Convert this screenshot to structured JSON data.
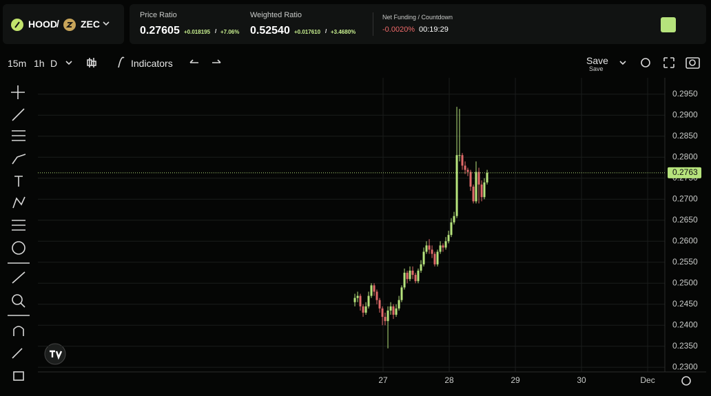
{
  "header": {
    "base": "HOOD",
    "separator": "/",
    "quote": "ZEC",
    "price_ratio": {
      "label": "Price Ratio",
      "value": "0.27605",
      "change": "+0.018195",
      "separator": "/",
      "change_pct": "+7.06%"
    },
    "weighted_ratio": {
      "label": "Weighted Ratio",
      "value": "0.52540",
      "change": "+0.017610",
      "separator": "/",
      "change_pct": "+3.4680%"
    },
    "net_funding": {
      "label": "Net Funding / Countdown",
      "value": "-0.0020%",
      "countdown": "00:19:29"
    }
  },
  "toolbar": {
    "intervals": [
      "15m",
      "1h",
      "D"
    ],
    "indicators": "Indicators",
    "save": "Save",
    "save_sub": "Save"
  },
  "chart_data": {
    "type": "candlestick",
    "up_color": "#b6e37c",
    "down_color": "#e06a6a",
    "grid": true,
    "x": [
      26.573,
      26.615,
      26.656,
      26.698,
      26.74,
      26.781,
      26.823,
      26.865,
      26.906,
      26.948,
      26.99,
      27.031,
      27.073,
      27.115,
      27.156,
      27.198,
      27.24,
      27.281,
      27.323,
      27.365,
      27.406,
      27.448,
      27.49,
      27.531,
      27.573,
      27.615,
      27.656,
      27.698,
      27.74,
      27.781,
      27.823,
      27.865,
      27.906,
      27.948,
      27.99,
      28.031,
      28.073,
      28.115,
      28.156,
      28.198,
      28.24,
      28.281,
      28.323,
      28.365,
      28.406,
      28.448,
      28.49,
      28.531,
      28.573
    ],
    "open": [
      0.2455,
      0.2465,
      0.247,
      0.2445,
      0.243,
      0.2445,
      0.247,
      0.2495,
      0.248,
      0.246,
      0.244,
      0.242,
      0.241,
      0.2435,
      0.2445,
      0.2425,
      0.244,
      0.246,
      0.249,
      0.2525,
      0.251,
      0.253,
      0.252,
      0.2505,
      0.253,
      0.2545,
      0.2575,
      0.259,
      0.258,
      0.257,
      0.2545,
      0.2575,
      0.259,
      0.2585,
      0.26,
      0.2615,
      0.2645,
      0.266,
      0.2805,
      0.2805,
      0.278,
      0.277,
      0.2765,
      0.273,
      0.2695,
      0.2765,
      0.2735,
      0.2705,
      0.274
    ],
    "high": [
      0.2475,
      0.248,
      0.2475,
      0.245,
      0.2455,
      0.248,
      0.25,
      0.25,
      0.2485,
      0.2465,
      0.2445,
      0.243,
      0.2445,
      0.2455,
      0.245,
      0.245,
      0.247,
      0.2495,
      0.2535,
      0.253,
      0.254,
      0.254,
      0.2525,
      0.2535,
      0.2555,
      0.2585,
      0.26,
      0.2605,
      0.259,
      0.2575,
      0.258,
      0.26,
      0.2595,
      0.261,
      0.2625,
      0.2655,
      0.267,
      0.292,
      0.2915,
      0.281,
      0.279,
      0.2775,
      0.277,
      0.2735,
      0.279,
      0.2775,
      0.2745,
      0.275,
      0.277
    ],
    "low": [
      0.2445,
      0.2455,
      0.2435,
      0.242,
      0.2425,
      0.244,
      0.2465,
      0.247,
      0.245,
      0.243,
      0.24,
      0.24,
      0.2345,
      0.2425,
      0.2415,
      0.242,
      0.2435,
      0.2455,
      0.2485,
      0.25,
      0.2505,
      0.251,
      0.25,
      0.25,
      0.2525,
      0.254,
      0.257,
      0.257,
      0.256,
      0.254,
      0.254,
      0.257,
      0.2575,
      0.258,
      0.2595,
      0.261,
      0.264,
      0.2655,
      0.279,
      0.277,
      0.276,
      0.2755,
      0.272,
      0.269,
      0.269,
      0.269,
      0.2695,
      0.27,
      0.2735
    ],
    "close": [
      0.2465,
      0.247,
      0.2445,
      0.243,
      0.2445,
      0.247,
      0.2495,
      0.248,
      0.246,
      0.244,
      0.242,
      0.241,
      0.2435,
      0.2445,
      0.2425,
      0.244,
      0.246,
      0.249,
      0.2525,
      0.251,
      0.253,
      0.252,
      0.2505,
      0.253,
      0.2545,
      0.2575,
      0.259,
      0.258,
      0.257,
      0.2545,
      0.2575,
      0.259,
      0.2585,
      0.26,
      0.2615,
      0.2645,
      0.266,
      0.2805,
      0.2805,
      0.278,
      0.277,
      0.2765,
      0.273,
      0.2695,
      0.2765,
      0.2735,
      0.2705,
      0.274,
      0.2763
    ],
    "last_price": {
      "value": 0.2763,
      "label": "0.2763"
    },
    "xlim": [
      21.781,
      31.26
    ],
    "xticks": [
      {
        "value": 27,
        "label": "27"
      },
      {
        "value": 28,
        "label": "28"
      },
      {
        "value": 29,
        "label": "29"
      },
      {
        "value": 30,
        "label": "30"
      },
      {
        "value": 31,
        "label": "Dec"
      }
    ],
    "ylim": [
      0.2289,
      0.2989
    ],
    "yticks": [
      {
        "value": 0.23,
        "label": "0.2300"
      },
      {
        "value": 0.235,
        "label": "0.2350"
      },
      {
        "value": 0.24,
        "label": "0.2400"
      },
      {
        "value": 0.245,
        "label": "0.2450"
      },
      {
        "value": 0.25,
        "label": "0.2500"
      },
      {
        "value": 0.255,
        "label": "0.2550"
      },
      {
        "value": 0.26,
        "label": "0.2600"
      },
      {
        "value": 0.265,
        "label": "0.2650"
      },
      {
        "value": 0.27,
        "label": "0.2700"
      },
      {
        "value": 0.275,
        "label": "0.2750"
      },
      {
        "value": 0.28,
        "label": "0.2800"
      },
      {
        "value": 0.285,
        "label": "0.2850"
      },
      {
        "value": 0.29,
        "label": "0.2900"
      },
      {
        "value": 0.295,
        "label": "0.2950"
      }
    ]
  }
}
